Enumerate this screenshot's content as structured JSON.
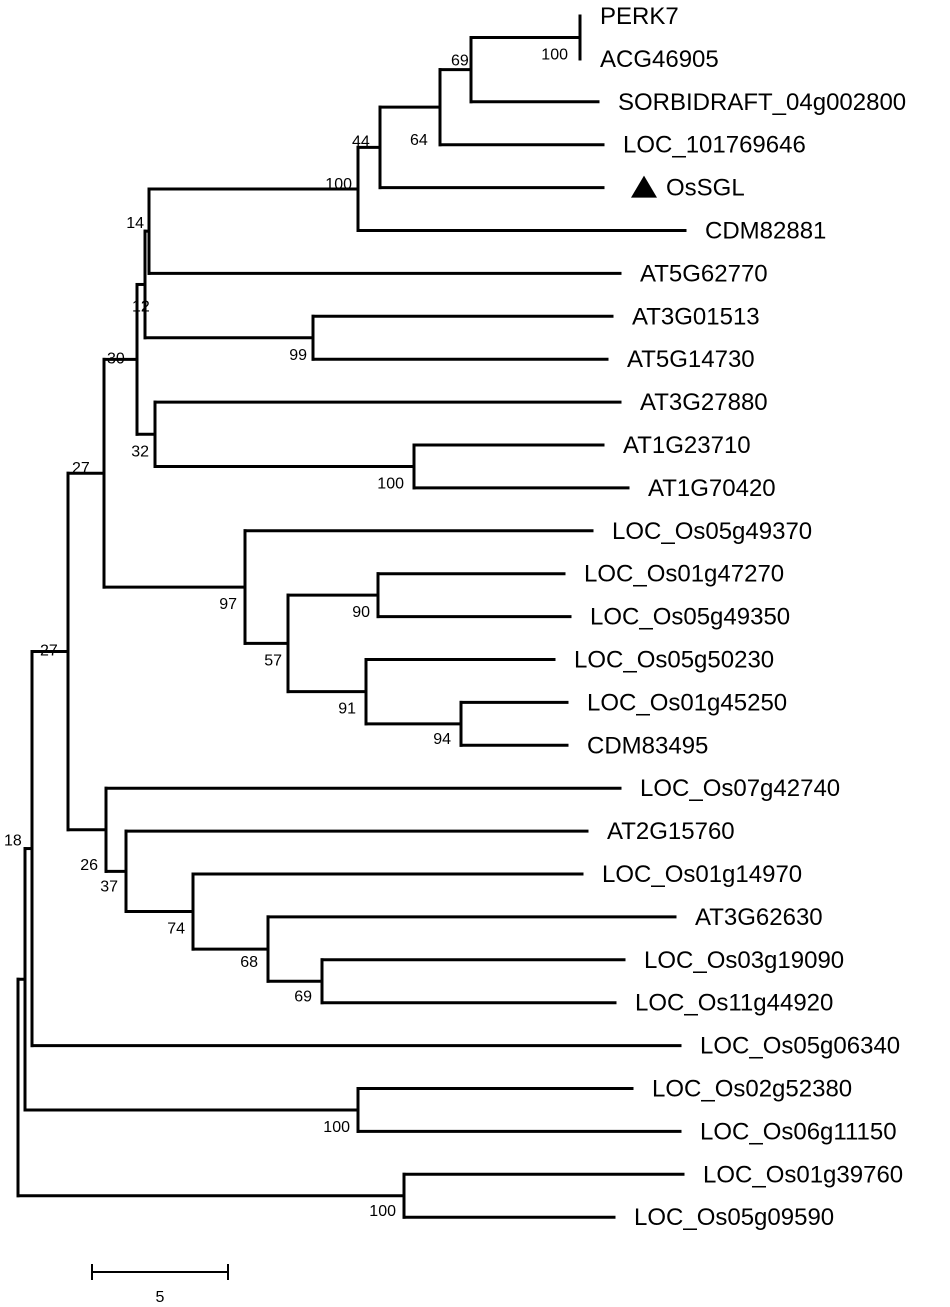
{
  "tree": {
    "marker_icon": "filled-triangle-icon",
    "leaves": [
      {
        "id": "perk7",
        "label": "PERK7"
      },
      {
        "id": "acg46905",
        "label": "ACG46905"
      },
      {
        "id": "sorbidraft",
        "label": "SORBIDRAFT_04g002800"
      },
      {
        "id": "loc101769646",
        "label": "LOC_101769646"
      },
      {
        "id": "ossgl",
        "label": "OsSGL",
        "marked": true
      },
      {
        "id": "cdm82881",
        "label": "CDM82881"
      },
      {
        "id": "at5g62770",
        "label": "AT5G62770"
      },
      {
        "id": "at3g01513",
        "label": "AT3G01513"
      },
      {
        "id": "at5g14730",
        "label": "AT5G14730"
      },
      {
        "id": "at3g27880",
        "label": "AT3G27880"
      },
      {
        "id": "at1g23710",
        "label": "AT1G23710"
      },
      {
        "id": "at1g70420",
        "label": "AT1G70420"
      },
      {
        "id": "os05g49370",
        "label": "LOC_Os05g49370"
      },
      {
        "id": "os01g47270",
        "label": "LOC_Os01g47270"
      },
      {
        "id": "os05g49350",
        "label": "LOC_Os05g49350"
      },
      {
        "id": "os05g50230",
        "label": "LOC_Os05g50230"
      },
      {
        "id": "os01g45250",
        "label": "LOC_Os01g45250"
      },
      {
        "id": "cdm83495",
        "label": "CDM83495"
      },
      {
        "id": "os07g42740",
        "label": "LOC_Os07g42740"
      },
      {
        "id": "at2g15760",
        "label": "AT2G15760"
      },
      {
        "id": "os01g14970",
        "label": "LOC_Os01g14970"
      },
      {
        "id": "at3g62630",
        "label": "AT3G62630"
      },
      {
        "id": "os03g19090",
        "label": "LOC_Os03g19090"
      },
      {
        "id": "os11g44920",
        "label": "LOC_Os11g44920"
      },
      {
        "id": "os05g06340",
        "label": "LOC_Os05g06340"
      },
      {
        "id": "os02g52380",
        "label": "LOC_Os02g52380"
      },
      {
        "id": "os06g11150",
        "label": "LOC_Os06g11150"
      },
      {
        "id": "os01g39760",
        "label": "LOC_Os01g39760"
      },
      {
        "id": "os05g09590",
        "label": "LOC_Os05g09590"
      }
    ],
    "bootstrap": {
      "n_perk_acg": "100",
      "n_sorbi": "69",
      "n_loc1017": "64",
      "n_ossgl": "44",
      "n_cdm82881": "100",
      "n_at5g62770": "14",
      "n_at3g01513": "99",
      "n_12": "12",
      "n_at1g23710": "100",
      "n_32": "32",
      "n_30": "30",
      "n_os01g47270": "90",
      "n_os01g45250": "94",
      "n_os05g50230": "91",
      "n_57": "57",
      "n_97": "97",
      "n_27a": "27",
      "n_os03g19090": "69",
      "n_at3g62630": "68",
      "n_os01g14970": "74",
      "n_at2g15760": "37",
      "n_os07g42740": "26",
      "n_27b": "27",
      "n_os05g06340": "18",
      "n_os02g52380": "100",
      "n_os01g39760": "100"
    },
    "scale_bar": {
      "value": "5"
    }
  }
}
